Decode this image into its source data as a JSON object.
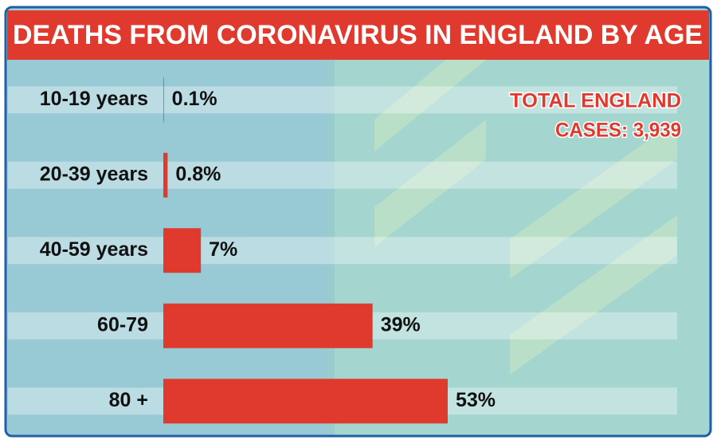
{
  "chart_data": {
    "type": "bar",
    "orientation": "horizontal",
    "title": "DEATHS FROM CORONAVIRUS IN ENGLAND BY AGE",
    "annotation": [
      "TOTAL ENGLAND",
      "CASES: 3,939"
    ],
    "categories": [
      "10-19 years",
      "20-39 years",
      "40-59 years",
      "60-79",
      "80 +"
    ],
    "values": [
      0.1,
      0.8,
      7,
      39,
      53
    ],
    "value_labels": [
      "0.1%",
      "0.8%",
      "7%",
      "39%",
      "53%"
    ],
    "color": "#e03a2f"
  }
}
